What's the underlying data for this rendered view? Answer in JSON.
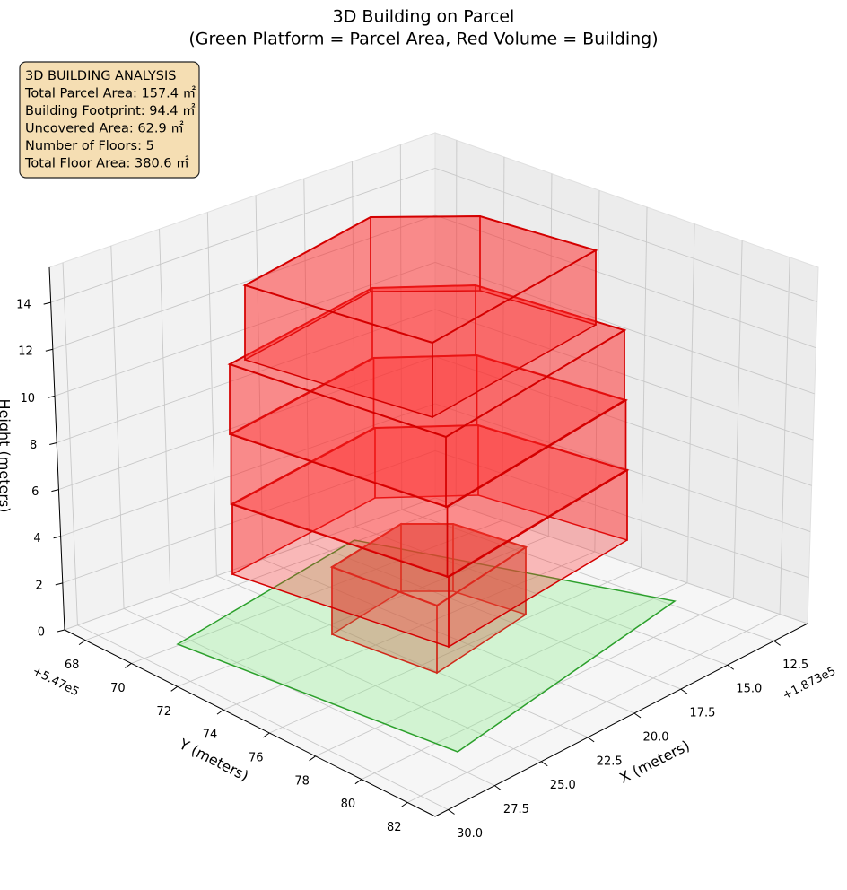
{
  "chart_data": {
    "type": "3d-box",
    "title": "3D Building on Parcel",
    "subtitle": "(Green Platform = Parcel Area, Red Volume = Building)",
    "xlabel": "X (meters)",
    "ylabel": "Y (meters)",
    "zlabel": "Height (meters)",
    "x_offset": "+1.873e5",
    "y_offset": "+5.47e5",
    "xlim": [
      10.7,
      30.7
    ],
    "xticks": [
      12.5,
      {
        "value": 15,
        "label": "15.0"
      },
      17.5,
      {
        "value": 20,
        "label": "20.0"
      },
      22.5,
      {
        "value": 25,
        "label": "25.0"
      },
      27.5,
      {
        "value": 30,
        "label": "30.0"
      }
    ],
    "ylim": [
      67.1,
      83.2
    ],
    "yticks": [
      68,
      70,
      72,
      74,
      76,
      78,
      80,
      82
    ],
    "zlim": [
      0,
      15.5
    ],
    "zticks": [
      0,
      2,
      4,
      6,
      8,
      10,
      12,
      14
    ],
    "grid": true,
    "annotation": [
      "3D BUILDING ANALYSIS",
      "Total Parcel Area: 157.4 ㎡",
      "Building Footprint: 94.4 ㎡",
      "Uncovered Area: 62.9 ㎡",
      "Number of Floors: 5",
      "Total Floor Area: 380.6 ㎡"
    ]
  }
}
